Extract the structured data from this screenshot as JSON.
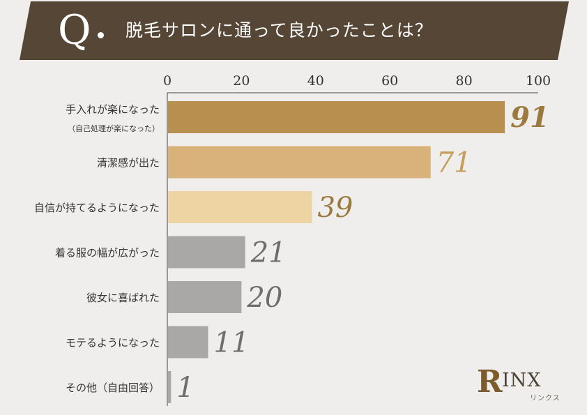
{
  "header": {
    "q_mark": "Q",
    "question": "脱毛サロンに通って良かったことは？"
  },
  "chart_data": {
    "type": "bar",
    "orientation": "horizontal",
    "title": "脱毛サロンに通って良かったことは？",
    "xlim": [
      0,
      100
    ],
    "ticks": [
      0,
      20,
      40,
      60,
      80,
      100
    ],
    "categories": [
      {
        "label": "手入れが楽になった",
        "sublabel": "（自己処理が楽になった）"
      },
      {
        "label": "清潔感が出た"
      },
      {
        "label": "自信が持てるようになった"
      },
      {
        "label": "着る服の幅が広がった"
      },
      {
        "label": "彼女に喜ばれた"
      },
      {
        "label": "モテるようになった"
      },
      {
        "label": "その他（自由回答）"
      }
    ],
    "values": [
      91,
      71,
      39,
      21,
      20,
      11,
      1
    ],
    "bar_colors": [
      "#b88f4e",
      "#d8b27a",
      "#eed3a3",
      "#aaa7a7",
      "#aaa7a7",
      "#aaa7a7",
      "#aaa7a7"
    ],
    "label_colors": [
      "#9c7a3e",
      "#c79d5c",
      "#9c7a3e",
      "#6e6c6c",
      "#6e6c6c",
      "#6e6c6c",
      "#6e6c6c"
    ],
    "grid": false
  },
  "colors": {
    "banner": "#564635",
    "background": "#efeeed",
    "axis": "#444444"
  },
  "logo": {
    "mark": "R",
    "text": "INX",
    "sub": "リンクス"
  }
}
